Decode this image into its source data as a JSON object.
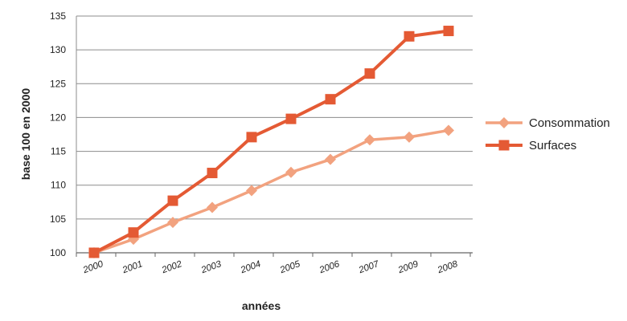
{
  "chart_data": {
    "type": "line",
    "categories": [
      "2000",
      "2001",
      "2002",
      "2003",
      "2004",
      "2005",
      "2006",
      "2007",
      "2009",
      "2008"
    ],
    "ylabel": "base 100 en 2000",
    "xlabel": "années",
    "ylim": [
      100,
      135
    ],
    "yticks": [
      100,
      105,
      110,
      115,
      120,
      125,
      130,
      135
    ],
    "grid": true,
    "legend_position": "right",
    "series": [
      {
        "name": "Consommation",
        "marker": "diamond",
        "color": "#f2a27f",
        "values": [
          100,
          102,
          104.5,
          106.7,
          109.2,
          111.9,
          113.8,
          116.7,
          117.1,
          118.1
        ]
      },
      {
        "name": "Surfaces",
        "marker": "square",
        "color": "#e45a34",
        "values": [
          100,
          103,
          107.7,
          111.8,
          117.1,
          119.8,
          122.7,
          126.5,
          132,
          132.8
        ]
      }
    ]
  }
}
